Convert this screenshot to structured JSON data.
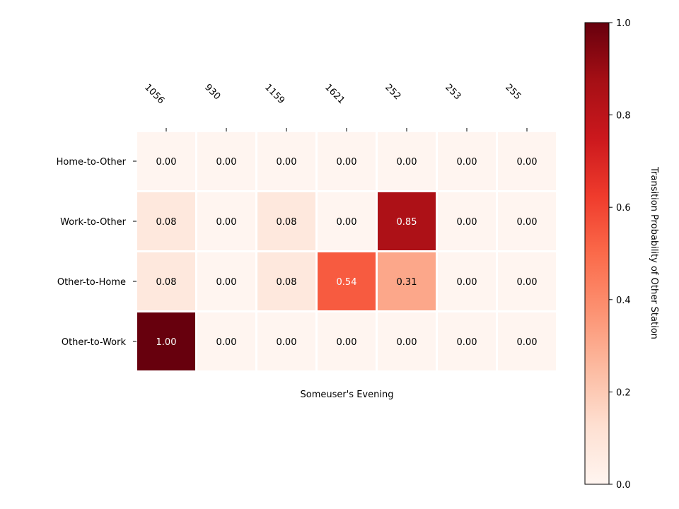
{
  "chart_data": {
    "type": "heatmap",
    "x_categories": [
      "1056",
      "930",
      "1159",
      "1621",
      "252",
      "253",
      "255"
    ],
    "y_categories": [
      "Home-to-Other",
      "Work-to-Other",
      "Other-to-Home",
      "Other-to-Work"
    ],
    "values": [
      [
        0.0,
        0.0,
        0.0,
        0.0,
        0.0,
        0.0,
        0.0
      ],
      [
        0.08,
        0.0,
        0.08,
        0.0,
        0.85,
        0.0,
        0.0
      ],
      [
        0.08,
        0.0,
        0.08,
        0.54,
        0.31,
        0.0,
        0.0
      ],
      [
        1.0,
        0.0,
        0.0,
        0.0,
        0.0,
        0.0,
        0.0
      ]
    ],
    "xlabel": "Someuser's Evening",
    "colorbar": {
      "label": "Transition Probability of Other Station",
      "range": [
        0,
        1
      ],
      "ticks": [
        "0.0",
        "0.2",
        "0.4",
        "0.6",
        "0.8",
        "1.0"
      ],
      "colormap": "Reds"
    },
    "value_format": "2 decimals",
    "grid": false
  }
}
